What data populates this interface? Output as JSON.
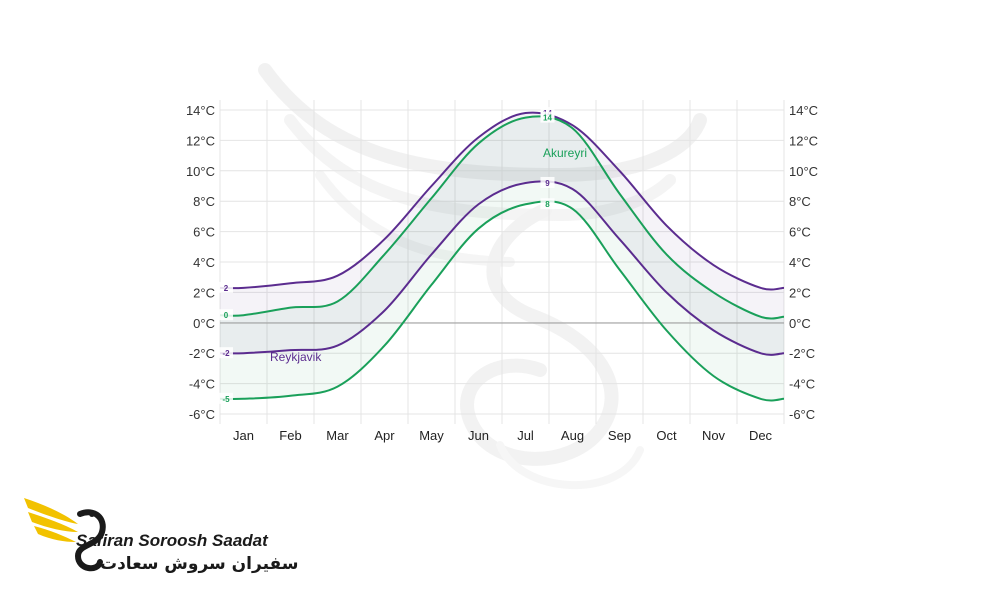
{
  "chart_data": {
    "type": "line",
    "y_unit": "°C",
    "ylim": [
      -6,
      14
    ],
    "y_ticks": [
      "14°C",
      "12°C",
      "10°C",
      "8°C",
      "6°C",
      "4°C",
      "2°C",
      "0°C",
      "-2°C",
      "-4°C",
      "-6°C"
    ],
    "categories": [
      "Jan",
      "Feb",
      "Mar",
      "Apr",
      "May",
      "Jun",
      "Jul",
      "Aug",
      "Sep",
      "Oct",
      "Nov",
      "Dec"
    ],
    "grid": true,
    "series": [
      {
        "name": "Reykjavík",
        "kind": "high",
        "color": "#5b2c8f",
        "values": [
          2.3,
          2.6,
          3.1,
          5.5,
          9.0,
          12.2,
          13.8,
          13.0,
          10.0,
          6.4,
          3.8,
          2.3
        ],
        "labels": [
          {
            "month": 0,
            "text": "2"
          },
          {
            "month": 6,
            "text": "14"
          }
        ]
      },
      {
        "name": "Reykjavík",
        "kind": "low",
        "color": "#5b2c8f",
        "values": [
          -2.0,
          -1.8,
          -1.5,
          0.8,
          4.5,
          7.8,
          9.2,
          8.8,
          5.5,
          2.0,
          -0.5,
          -2.0
        ],
        "labels": [
          {
            "month": 0,
            "text": "-2"
          },
          {
            "month": 6,
            "text": "9"
          }
        ]
      },
      {
        "name": "Akureyri",
        "kind": "high",
        "color": "#1aa05a",
        "values": [
          0.5,
          1.0,
          1.4,
          4.5,
          8.2,
          11.8,
          13.5,
          12.8,
          8.5,
          4.5,
          2.0,
          0.4
        ],
        "labels": [
          {
            "month": 0,
            "text": "0"
          },
          {
            "month": 6,
            "text": "14"
          }
        ]
      },
      {
        "name": "Akureyri",
        "kind": "low",
        "color": "#1aa05a",
        "values": [
          -5.0,
          -4.8,
          -4.2,
          -1.5,
          2.5,
          6.2,
          7.8,
          7.5,
          3.5,
          -0.5,
          -3.5,
          -5.0
        ],
        "labels": [
          {
            "month": 0,
            "text": "-5"
          },
          {
            "month": 6,
            "text": "8"
          }
        ]
      }
    ],
    "annotations": [
      {
        "text": "Akureyri",
        "color": "#1aa05a"
      },
      {
        "text": "Reykjavik",
        "color": "#5b2c8f"
      }
    ]
  },
  "brand": {
    "name_en": "Safiran Soroosh Saadat",
    "name_fa": "سفیران سروش سعادت",
    "accent": "#f2c200",
    "dark": "#1a1a1a"
  }
}
